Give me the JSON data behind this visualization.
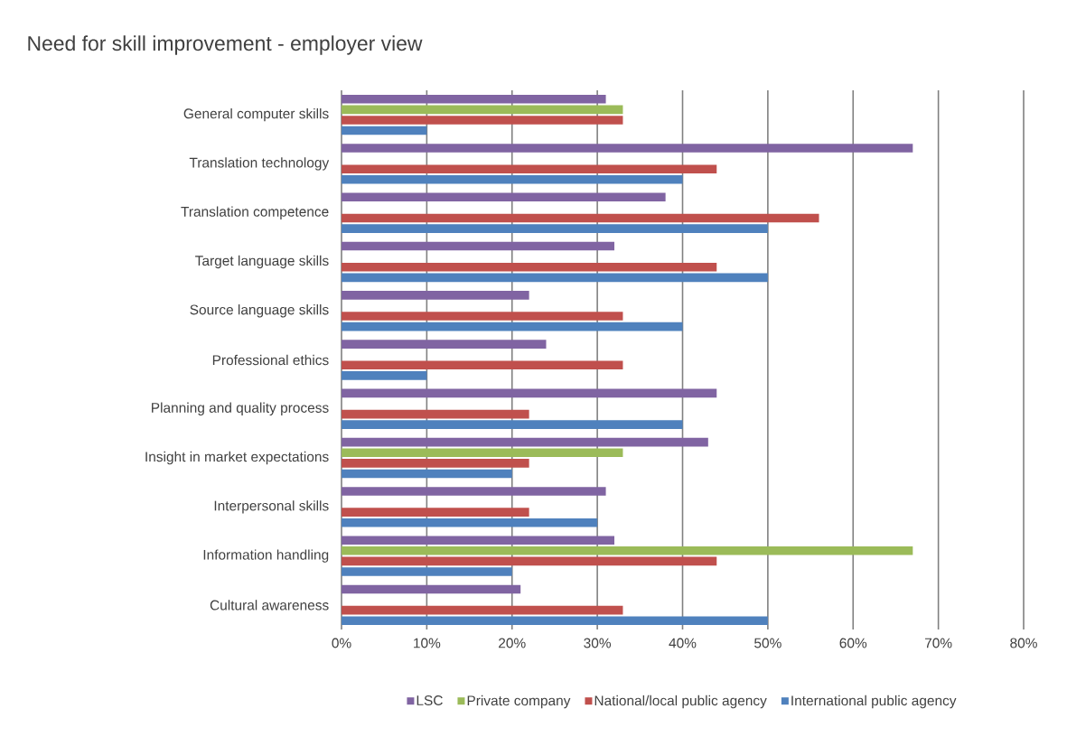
{
  "chart_data": {
    "type": "bar",
    "orientation": "horizontal",
    "title": "Need for skill improvement - employer view",
    "categories": [
      "General computer skills",
      "Translation technology",
      "Translation competence",
      "Target language skills",
      "Source language skills",
      "Professional ethics",
      "Planning and quality process",
      "Insight in market expectations",
      "Interpersonal skills",
      "Information handling",
      "Cultural awareness"
    ],
    "series": [
      {
        "name": "LSC",
        "color": "#8064a2",
        "values": [
          31,
          67,
          38,
          32,
          22,
          24,
          44,
          43,
          31,
          32,
          21
        ]
      },
      {
        "name": "Private company",
        "color": "#9bbb59",
        "values": [
          33,
          null,
          null,
          null,
          null,
          null,
          null,
          33,
          null,
          67,
          null
        ]
      },
      {
        "name": "National/local public agency",
        "color": "#c0504d",
        "values": [
          33,
          44,
          56,
          44,
          33,
          33,
          22,
          22,
          22,
          44,
          33
        ]
      },
      {
        "name": "International public agency",
        "color": "#4f81bd",
        "values": [
          10,
          40,
          50,
          50,
          40,
          10,
          40,
          20,
          30,
          20,
          50
        ]
      }
    ],
    "xlim": [
      0,
      80
    ],
    "xticks": [
      {
        "value": 0,
        "label": "0%"
      },
      {
        "value": 10,
        "label": "10%"
      },
      {
        "value": 20,
        "label": "20%"
      },
      {
        "value": 30,
        "label": "30%"
      },
      {
        "value": 40,
        "label": "40%"
      },
      {
        "value": 50,
        "label": "50%"
      },
      {
        "value": 60,
        "label": "60%"
      },
      {
        "value": 70,
        "label": "70%"
      },
      {
        "value": 80,
        "label": "80%"
      }
    ],
    "grid": "x",
    "legend": "bottom"
  }
}
